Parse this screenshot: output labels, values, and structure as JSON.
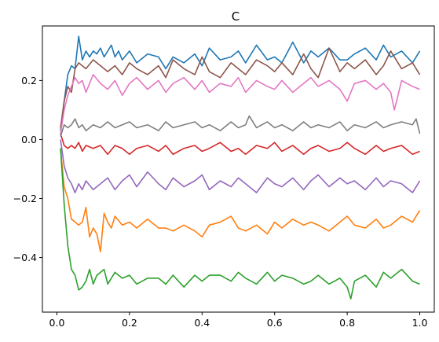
{
  "chart_data": {
    "type": "line",
    "title": "C",
    "xlabel": "",
    "ylabel": "",
    "xlim": [
      -0.04,
      1.04
    ],
    "ylim": [
      -0.585,
      0.385
    ],
    "xticks": [
      0.0,
      0.2,
      0.4,
      0.6,
      0.8,
      1.0
    ],
    "xtick_labels": [
      "0.0",
      "0.2",
      "0.4",
      "0.6",
      "0.8",
      "1.0"
    ],
    "yticks": [
      -0.4,
      -0.2,
      0.0,
      0.2
    ],
    "ytick_labels": [
      "−0.4",
      "−0.2",
      "0.0",
      "0.2"
    ],
    "grid": false,
    "legend": "none",
    "x_range": [
      0.01,
      1.0
    ],
    "points_per_series": 100,
    "series": [
      {
        "color": "#1f77b4",
        "x": [
          0.01,
          0.02,
          0.03,
          0.04,
          0.05,
          0.06,
          0.07,
          0.08,
          0.09,
          0.1,
          0.11,
          0.12,
          0.13,
          0.14,
          0.15,
          0.16,
          0.17,
          0.18,
          0.2,
          0.22,
          0.25,
          0.28,
          0.3,
          0.32,
          0.35,
          0.38,
          0.4,
          0.42,
          0.45,
          0.48,
          0.5,
          0.52,
          0.55,
          0.58,
          0.6,
          0.62,
          0.65,
          0.68,
          0.7,
          0.72,
          0.75,
          0.78,
          0.8,
          0.82,
          0.85,
          0.88,
          0.9,
          0.92,
          0.95,
          0.98,
          1.0
        ],
        "y": [
          0.03,
          0.13,
          0.22,
          0.25,
          0.24,
          0.35,
          0.27,
          0.3,
          0.28,
          0.3,
          0.29,
          0.31,
          0.28,
          0.3,
          0.32,
          0.28,
          0.3,
          0.27,
          0.3,
          0.26,
          0.29,
          0.28,
          0.24,
          0.28,
          0.26,
          0.29,
          0.25,
          0.31,
          0.27,
          0.28,
          0.3,
          0.26,
          0.32,
          0.27,
          0.28,
          0.26,
          0.33,
          0.26,
          0.3,
          0.28,
          0.31,
          0.27,
          0.27,
          0.29,
          0.31,
          0.27,
          0.32,
          0.28,
          0.3,
          0.26,
          0.3
        ]
      },
      {
        "color": "#ff7f0e",
        "x": [
          0.01,
          0.02,
          0.03,
          0.04,
          0.05,
          0.06,
          0.07,
          0.08,
          0.09,
          0.1,
          0.11,
          0.12,
          0.13,
          0.14,
          0.15,
          0.16,
          0.18,
          0.2,
          0.22,
          0.25,
          0.28,
          0.3,
          0.32,
          0.35,
          0.38,
          0.4,
          0.42,
          0.45,
          0.48,
          0.5,
          0.52,
          0.55,
          0.58,
          0.6,
          0.62,
          0.65,
          0.68,
          0.7,
          0.72,
          0.75,
          0.78,
          0.8,
          0.82,
          0.85,
          0.88,
          0.9,
          0.92,
          0.95,
          0.98,
          1.0
        ],
        "y": [
          -0.03,
          -0.16,
          -0.2,
          -0.27,
          -0.28,
          -0.29,
          -0.28,
          -0.23,
          -0.33,
          -0.3,
          -0.32,
          -0.38,
          -0.25,
          -0.28,
          -0.3,
          -0.26,
          -0.29,
          -0.28,
          -0.3,
          -0.27,
          -0.3,
          -0.3,
          -0.31,
          -0.29,
          -0.31,
          -0.33,
          -0.29,
          -0.28,
          -0.26,
          -0.3,
          -0.31,
          -0.29,
          -0.32,
          -0.28,
          -0.3,
          -0.27,
          -0.29,
          -0.28,
          -0.29,
          -0.31,
          -0.28,
          -0.26,
          -0.29,
          -0.3,
          -0.27,
          -0.3,
          -0.29,
          -0.26,
          -0.28,
          -0.24
        ]
      },
      {
        "color": "#2ca02c",
        "x": [
          0.01,
          0.02,
          0.03,
          0.04,
          0.05,
          0.06,
          0.07,
          0.08,
          0.09,
          0.1,
          0.11,
          0.12,
          0.13,
          0.14,
          0.15,
          0.16,
          0.18,
          0.2,
          0.22,
          0.25,
          0.28,
          0.3,
          0.32,
          0.35,
          0.38,
          0.4,
          0.42,
          0.45,
          0.48,
          0.5,
          0.52,
          0.55,
          0.58,
          0.6,
          0.62,
          0.65,
          0.68,
          0.7,
          0.72,
          0.75,
          0.78,
          0.8,
          0.81,
          0.82,
          0.85,
          0.88,
          0.9,
          0.92,
          0.95,
          0.98,
          1.0
        ],
        "y": [
          -0.03,
          -0.22,
          -0.36,
          -0.44,
          -0.46,
          -0.51,
          -0.5,
          -0.48,
          -0.44,
          -0.49,
          -0.46,
          -0.45,
          -0.44,
          -0.49,
          -0.47,
          -0.45,
          -0.47,
          -0.46,
          -0.49,
          -0.47,
          -0.47,
          -0.49,
          -0.46,
          -0.5,
          -0.46,
          -0.48,
          -0.46,
          -0.46,
          -0.48,
          -0.45,
          -0.47,
          -0.49,
          -0.45,
          -0.48,
          -0.46,
          -0.47,
          -0.49,
          -0.48,
          -0.46,
          -0.49,
          -0.47,
          -0.5,
          -0.54,
          -0.48,
          -0.46,
          -0.5,
          -0.45,
          -0.47,
          -0.44,
          -0.48,
          -0.49
        ]
      },
      {
        "color": "#d62728",
        "x": [
          0.01,
          0.02,
          0.03,
          0.04,
          0.05,
          0.06,
          0.07,
          0.08,
          0.1,
          0.12,
          0.14,
          0.16,
          0.18,
          0.2,
          0.22,
          0.25,
          0.28,
          0.3,
          0.32,
          0.35,
          0.38,
          0.4,
          0.42,
          0.45,
          0.48,
          0.5,
          0.52,
          0.55,
          0.58,
          0.6,
          0.62,
          0.65,
          0.68,
          0.7,
          0.72,
          0.75,
          0.78,
          0.8,
          0.82,
          0.85,
          0.88,
          0.9,
          0.92,
          0.95,
          0.98,
          1.0
        ],
        "y": [
          0.02,
          -0.02,
          -0.03,
          -0.02,
          -0.03,
          -0.01,
          -0.04,
          -0.02,
          -0.03,
          -0.02,
          -0.05,
          -0.02,
          -0.03,
          -0.05,
          -0.03,
          -0.02,
          -0.04,
          -0.02,
          -0.05,
          -0.03,
          -0.02,
          -0.04,
          -0.03,
          -0.01,
          -0.04,
          -0.03,
          -0.05,
          -0.02,
          -0.03,
          -0.01,
          -0.04,
          -0.02,
          -0.05,
          -0.03,
          -0.02,
          -0.04,
          -0.03,
          -0.01,
          -0.03,
          -0.05,
          -0.02,
          -0.04,
          -0.03,
          -0.02,
          -0.05,
          -0.04
        ]
      },
      {
        "color": "#9467bd",
        "x": [
          0.01,
          0.02,
          0.03,
          0.04,
          0.05,
          0.06,
          0.07,
          0.08,
          0.1,
          0.12,
          0.14,
          0.16,
          0.18,
          0.2,
          0.22,
          0.25,
          0.28,
          0.3,
          0.32,
          0.35,
          0.38,
          0.4,
          0.42,
          0.45,
          0.48,
          0.5,
          0.52,
          0.55,
          0.58,
          0.6,
          0.62,
          0.65,
          0.68,
          0.7,
          0.72,
          0.75,
          0.78,
          0.8,
          0.82,
          0.85,
          0.88,
          0.9,
          0.92,
          0.95,
          0.98,
          1.0
        ],
        "y": [
          0.0,
          -0.09,
          -0.13,
          -0.15,
          -0.18,
          -0.15,
          -0.17,
          -0.14,
          -0.17,
          -0.15,
          -0.13,
          -0.17,
          -0.14,
          -0.12,
          -0.16,
          -0.11,
          -0.15,
          -0.17,
          -0.13,
          -0.16,
          -0.14,
          -0.12,
          -0.17,
          -0.14,
          -0.16,
          -0.13,
          -0.15,
          -0.18,
          -0.13,
          -0.15,
          -0.16,
          -0.13,
          -0.17,
          -0.14,
          -0.12,
          -0.16,
          -0.13,
          -0.15,
          -0.14,
          -0.17,
          -0.13,
          -0.16,
          -0.14,
          -0.15,
          -0.18,
          -0.14
        ]
      },
      {
        "color": "#8c564b",
        "x": [
          0.01,
          0.02,
          0.03,
          0.04,
          0.05,
          0.06,
          0.07,
          0.08,
          0.1,
          0.12,
          0.14,
          0.16,
          0.18,
          0.2,
          0.22,
          0.25,
          0.28,
          0.3,
          0.32,
          0.35,
          0.38,
          0.4,
          0.42,
          0.45,
          0.48,
          0.5,
          0.52,
          0.55,
          0.58,
          0.6,
          0.62,
          0.65,
          0.68,
          0.7,
          0.72,
          0.75,
          0.78,
          0.8,
          0.82,
          0.85,
          0.88,
          0.9,
          0.92,
          0.95,
          0.98,
          1.0
        ],
        "y": [
          0.04,
          0.13,
          0.18,
          0.16,
          0.24,
          0.26,
          0.25,
          0.24,
          0.27,
          0.25,
          0.23,
          0.25,
          0.22,
          0.26,
          0.24,
          0.22,
          0.25,
          0.21,
          0.27,
          0.24,
          0.22,
          0.28,
          0.23,
          0.21,
          0.26,
          0.24,
          0.22,
          0.27,
          0.25,
          0.23,
          0.26,
          0.22,
          0.29,
          0.24,
          0.21,
          0.31,
          0.23,
          0.26,
          0.24,
          0.27,
          0.22,
          0.25,
          0.3,
          0.24,
          0.26,
          0.22
        ]
      },
      {
        "color": "#e377c2",
        "x": [
          0.01,
          0.02,
          0.03,
          0.04,
          0.05,
          0.06,
          0.07,
          0.08,
          0.1,
          0.12,
          0.14,
          0.16,
          0.18,
          0.2,
          0.22,
          0.25,
          0.28,
          0.3,
          0.32,
          0.35,
          0.38,
          0.4,
          0.42,
          0.45,
          0.48,
          0.5,
          0.52,
          0.55,
          0.58,
          0.6,
          0.62,
          0.65,
          0.68,
          0.7,
          0.72,
          0.75,
          0.78,
          0.8,
          0.82,
          0.85,
          0.88,
          0.9,
          0.92,
          0.93,
          0.95,
          0.98,
          1.0
        ],
        "y": [
          0.02,
          0.1,
          0.15,
          0.18,
          0.21,
          0.19,
          0.2,
          0.16,
          0.22,
          0.19,
          0.17,
          0.2,
          0.15,
          0.19,
          0.21,
          0.17,
          0.2,
          0.16,
          0.19,
          0.21,
          0.17,
          0.2,
          0.16,
          0.19,
          0.18,
          0.21,
          0.16,
          0.2,
          0.18,
          0.17,
          0.2,
          0.16,
          0.19,
          0.21,
          0.18,
          0.2,
          0.17,
          0.13,
          0.19,
          0.2,
          0.17,
          0.19,
          0.16,
          0.1,
          0.2,
          0.18,
          0.17
        ]
      },
      {
        "color": "#7f7f7f",
        "x": [
          0.01,
          0.02,
          0.03,
          0.04,
          0.05,
          0.06,
          0.07,
          0.08,
          0.1,
          0.12,
          0.14,
          0.16,
          0.18,
          0.2,
          0.22,
          0.25,
          0.28,
          0.3,
          0.32,
          0.35,
          0.38,
          0.4,
          0.42,
          0.45,
          0.48,
          0.5,
          0.52,
          0.53,
          0.55,
          0.58,
          0.6,
          0.62,
          0.65,
          0.68,
          0.7,
          0.72,
          0.75,
          0.78,
          0.8,
          0.82,
          0.85,
          0.88,
          0.9,
          0.92,
          0.95,
          0.98,
          0.99,
          1.0
        ],
        "y": [
          0.01,
          0.05,
          0.04,
          0.05,
          0.07,
          0.04,
          0.05,
          0.03,
          0.05,
          0.04,
          0.06,
          0.04,
          0.05,
          0.06,
          0.04,
          0.05,
          0.03,
          0.06,
          0.04,
          0.05,
          0.06,
          0.04,
          0.05,
          0.03,
          0.06,
          0.04,
          0.05,
          0.08,
          0.04,
          0.06,
          0.04,
          0.05,
          0.03,
          0.06,
          0.04,
          0.05,
          0.04,
          0.06,
          0.03,
          0.05,
          0.04,
          0.06,
          0.04,
          0.05,
          0.06,
          0.05,
          0.07,
          0.02
        ]
      }
    ]
  }
}
